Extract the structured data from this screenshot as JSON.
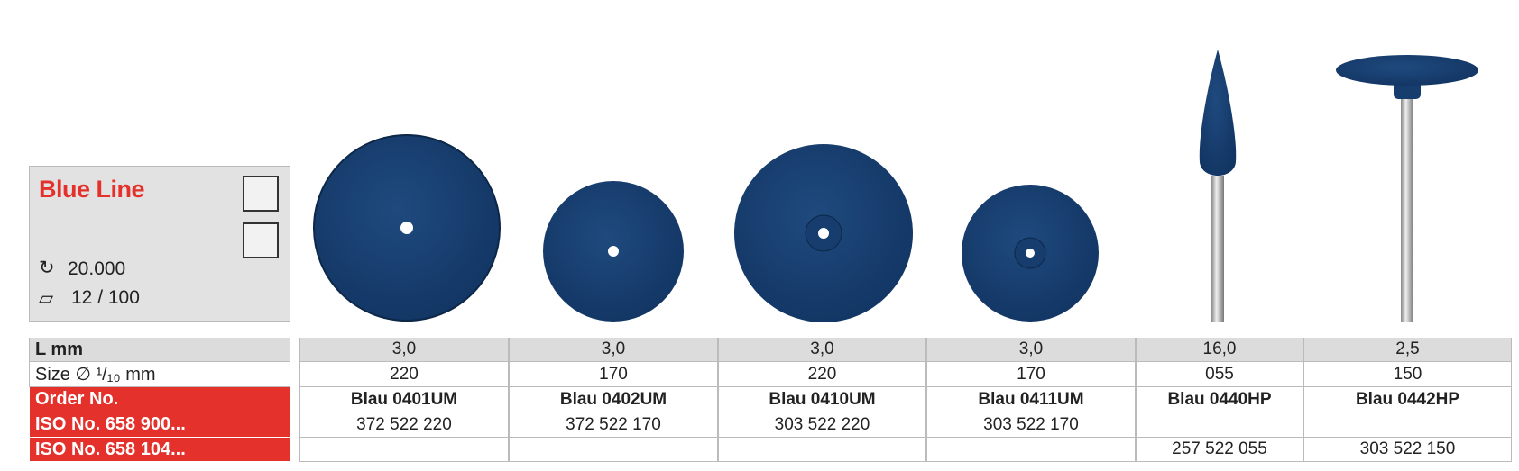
{
  "header": {
    "title": "Blue Line",
    "speed": "20.000",
    "packaging": "12 / 100"
  },
  "table": {
    "row_labels": [
      "L mm",
      "Size ∅ ¹/₁₀ mm",
      "Order No.",
      "ISO No. 658 900...",
      "ISO No. 658 104..."
    ],
    "columns": [
      {
        "length": "3,0",
        "size": "220",
        "order_no": "Blau 0401UM",
        "iso_900": "372 522 220",
        "iso_104": null
      },
      {
        "length": "3,0",
        "size": "170",
        "order_no": "Blau 0402UM",
        "iso_900": "372 522 170",
        "iso_104": null
      },
      {
        "length": "3,0",
        "size": "220",
        "order_no": "Blau 0410UM",
        "iso_900": "303 522 220",
        "iso_104": null
      },
      {
        "length": "3,0",
        "size": "170",
        "order_no": "Blau 0411UM",
        "iso_900": "303 522 170",
        "iso_104": null
      },
      {
        "length": "16,0",
        "size": "055",
        "order_no": "Blau 0440HP",
        "iso_900": null,
        "iso_104": "257 522 055"
      },
      {
        "length": "2,5",
        "size": "150",
        "order_no": "Blau 0442HP",
        "iso_900": null,
        "iso_104": "303 522 150"
      }
    ]
  }
}
